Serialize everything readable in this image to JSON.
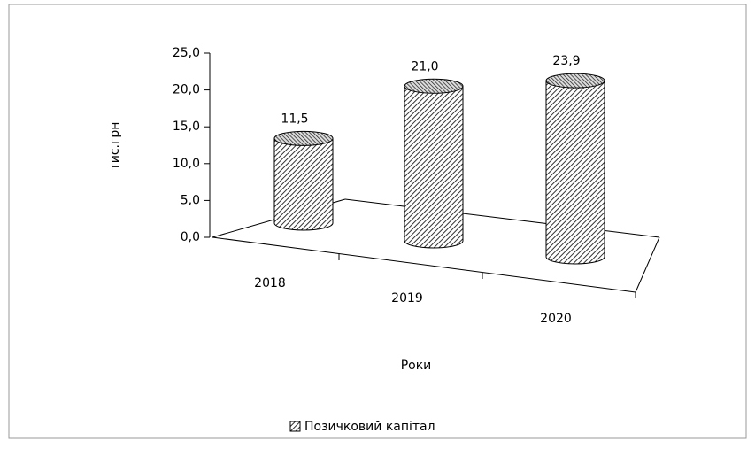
{
  "chart_data": {
    "type": "cylinder",
    "categories": [
      "2018",
      "2019",
      "2020"
    ],
    "series": [
      {
        "name": "Позичковий капітал",
        "color": "#555555",
        "values": [
          11.5,
          21.0,
          23.9
        ],
        "value_labels": [
          "11,5",
          "21,0",
          "23,9"
        ]
      }
    ],
    "y_label": "тис.грн",
    "x_label": "Роки",
    "ylim": [
      0,
      25
    ],
    "yticks": [
      {
        "value": 0,
        "label": "0,0"
      },
      {
        "value": 5,
        "label": "5,0"
      },
      {
        "value": 10,
        "label": "10,0"
      },
      {
        "value": 15,
        "label": "15,0"
      },
      {
        "value": 20,
        "label": "20,0"
      },
      {
        "value": 25,
        "label": "25,0"
      }
    ],
    "legend": "bottom"
  }
}
